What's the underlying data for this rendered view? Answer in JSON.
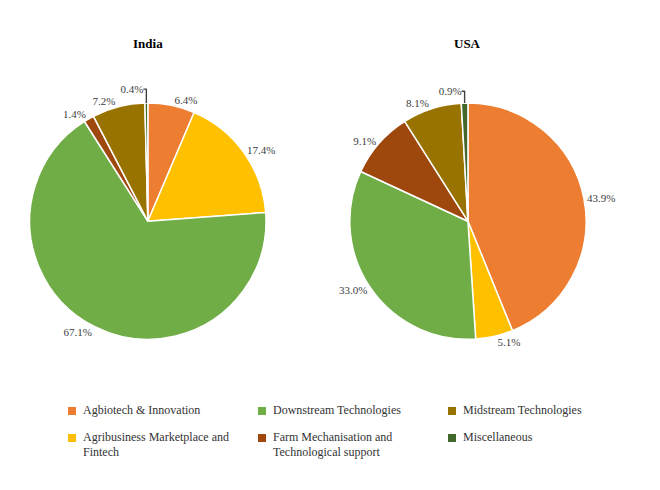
{
  "chart_data": [
    {
      "type": "pie",
      "title": "India",
      "categories": [
        "Agbiotech & Innovation",
        "Agribusiness Marketplace and Fintech",
        "Downstream Technologies",
        "Farm Mechanisation and Technological support",
        "Midstream Technologies",
        "Miscellaneous"
      ],
      "values": [
        6.4,
        17.4,
        67.1,
        1.4,
        7.2,
        0.4
      ],
      "value_labels": [
        "6.4%",
        "17.4%",
        "67.1%",
        "1.4%",
        "7.2%",
        "0.4%"
      ],
      "colors": [
        "#ed7d31",
        "#ffc000",
        "#70ad47",
        "#9e480e",
        "#997300",
        "#43682b"
      ],
      "data_labels": true,
      "legend": "bottom"
    },
    {
      "type": "pie",
      "title": "USA",
      "categories": [
        "Agbiotech & Innovation",
        "Agribusiness Marketplace and Fintech",
        "Downstream Technologies",
        "Farm Mechanisation and Technological support",
        "Midstream Technologies",
        "Miscellaneous"
      ],
      "values": [
        43.9,
        5.1,
        33.0,
        9.1,
        8.1,
        0.9
      ],
      "value_labels": [
        "43.9%",
        "5.1%",
        "33.0%",
        "9.1%",
        "8.1%",
        "0.9%"
      ],
      "colors": [
        "#ed7d31",
        "#ffc000",
        "#70ad47",
        "#9e480e",
        "#997300",
        "#43682b"
      ],
      "data_labels": true,
      "legend": "bottom"
    }
  ]
}
